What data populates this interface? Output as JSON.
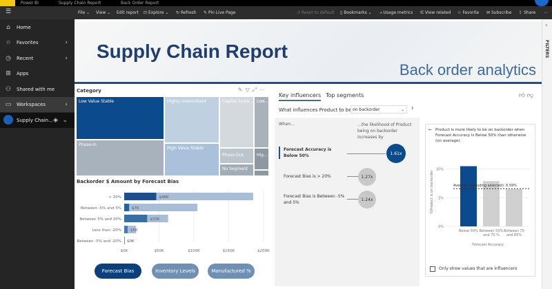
{
  "title_bar": {
    "app": "Power BI",
    "workspace": "Supply Chain Report",
    "report": "Back Order Report"
  },
  "toolbar": {
    "file": "File",
    "view": "View",
    "edit": "Edit report",
    "explore": "Explore",
    "refresh": "Refresh",
    "pin": "Pin Live Page",
    "reset": "Reset to default",
    "bookmarks": "Bookmarks",
    "usage": "Usage metrics",
    "related": "View related",
    "favorite": "Favorite",
    "subscribe": "Subscribe",
    "share": "Share"
  },
  "sidebar": {
    "items": [
      {
        "label": "Home",
        "icon": "home-icon"
      },
      {
        "label": "Favorites",
        "icon": "star-icon"
      },
      {
        "label": "Recent",
        "icon": "clock-icon"
      },
      {
        "label": "Apps",
        "icon": "apps-icon"
      },
      {
        "label": "Shared with me",
        "icon": "shared-icon"
      },
      {
        "label": "Workspaces",
        "icon": "workspaces-icon"
      }
    ],
    "workspace": "Supply Chain..."
  },
  "banner": {
    "title": "Supply Chain Report",
    "subtitle": "Back order analytics"
  },
  "filters_label": "FILTERS",
  "treemap": {
    "title": "Category",
    "tiles": [
      "Low Value Stable",
      "Highly Intermittent",
      "Capital Syste...",
      "Low...",
      "Phase-In",
      "High Value Stable",
      "Phase-Out",
      "Hig...",
      "No Segment"
    ]
  },
  "bar_chart": {
    "title": "Backorder $ Amount by Forecast Bias"
  },
  "chart_data": {
    "type": "bar",
    "orientation": "horizontal",
    "title": "Backorder $ Amount by Forecast Bias",
    "categories": [
      "> 20%",
      "Between -5% and 5%",
      "Between 5% and 20%",
      "Less than -20%",
      "Between -5% and -20%"
    ],
    "series": [
      {
        "values": [
          46000,
          7000,
          33000,
          5000,
          0
        ]
      },
      {
        "values": [
          185000,
          105000,
          63000,
          17000,
          1000
        ]
      }
    ],
    "data_labels": [
      "$46K",
      "$7K",
      "$33K",
      "$5K",
      "$0K"
    ],
    "xticks": [
      "$0K",
      "$50K",
      "$100K",
      "$150K",
      "$200K"
    ],
    "xlim": [
      0,
      200000
    ],
    "colors": [
      "#1f4e8c",
      "#a9bed6"
    ]
  },
  "buttons": {
    "forecast_bias": "Forecast Bias",
    "inventory": "Inventory Levels",
    "manufactured": "Manufactured %"
  },
  "key_influencers": {
    "tab1": "Key influencers",
    "tab2": "Top segments",
    "question": "What influences Product to be",
    "dropdown": "on backorder",
    "help": "?",
    "when": "When...",
    "likelihood": "...the likelihood of Product being on backorder increases by",
    "items": [
      {
        "label": "Forecast Accuracy is Below 50%",
        "value": "1.61x"
      },
      {
        "label": "Forecast Bias is > 20%",
        "value": "1.27x"
      },
      {
        "label": "Forecast Bias is Between -5% and 5%",
        "value": "1.24x"
      }
    ],
    "detail": {
      "text": "Product is more likely to be on backorder when Forecast Accuracy is Below 50% than otherwise (on average).",
      "ylabel": "%Product is on backorder",
      "yticks": [
        "10%",
        "5%",
        "0%"
      ],
      "avg_label": "Average (excluding selected): 6.59%",
      "avg": 6.59,
      "bars": [
        {
          "label": "Below 50%",
          "value": 10.5
        },
        {
          "label": "Between 50% and 70 %",
          "value": 7.9
        },
        {
          "label": "Between 70 and 85%",
          "value": 6.5
        }
      ],
      "xlabel": "Forecast Accuracy",
      "checkbox": "Only show values that are influencers"
    }
  }
}
